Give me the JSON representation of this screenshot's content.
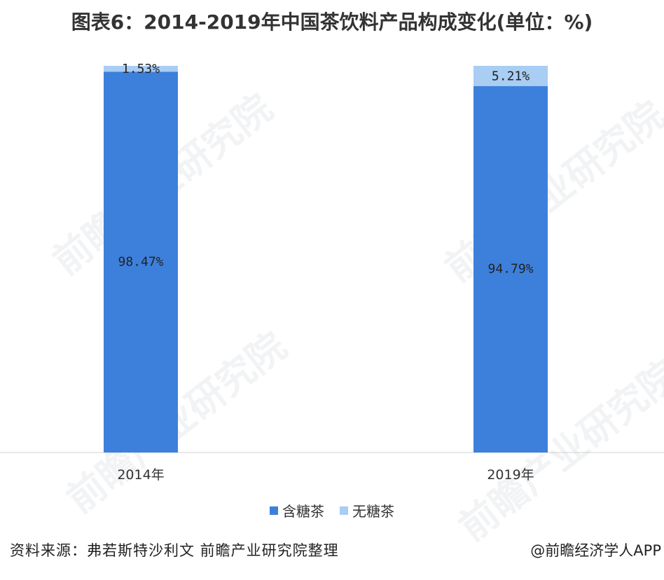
{
  "title": "图表6：2014-2019年中国茶饮料产品构成变化(单位：%)",
  "chart_data": {
    "type": "bar",
    "stacked": true,
    "categories": [
      "2014年",
      "2019年"
    ],
    "series": [
      {
        "name": "含糖茶",
        "values": [
          98.47,
          94.79
        ],
        "labels": [
          "98.47%",
          "94.79%"
        ],
        "color": "#3d80dc"
      },
      {
        "name": "无糖茶",
        "values": [
          1.53,
          5.21
        ],
        "labels": [
          "1.53%",
          "5.21%"
        ],
        "color": "#a9cdf3"
      }
    ],
    "ylim": [
      0,
      100
    ],
    "grid": false,
    "legend_position": "bottom"
  },
  "source": "资料来源：弗若斯特沙利文 前瞻产业研究院整理",
  "credit": "@前瞻经济学人APP",
  "watermark": "前瞻产业研究院"
}
